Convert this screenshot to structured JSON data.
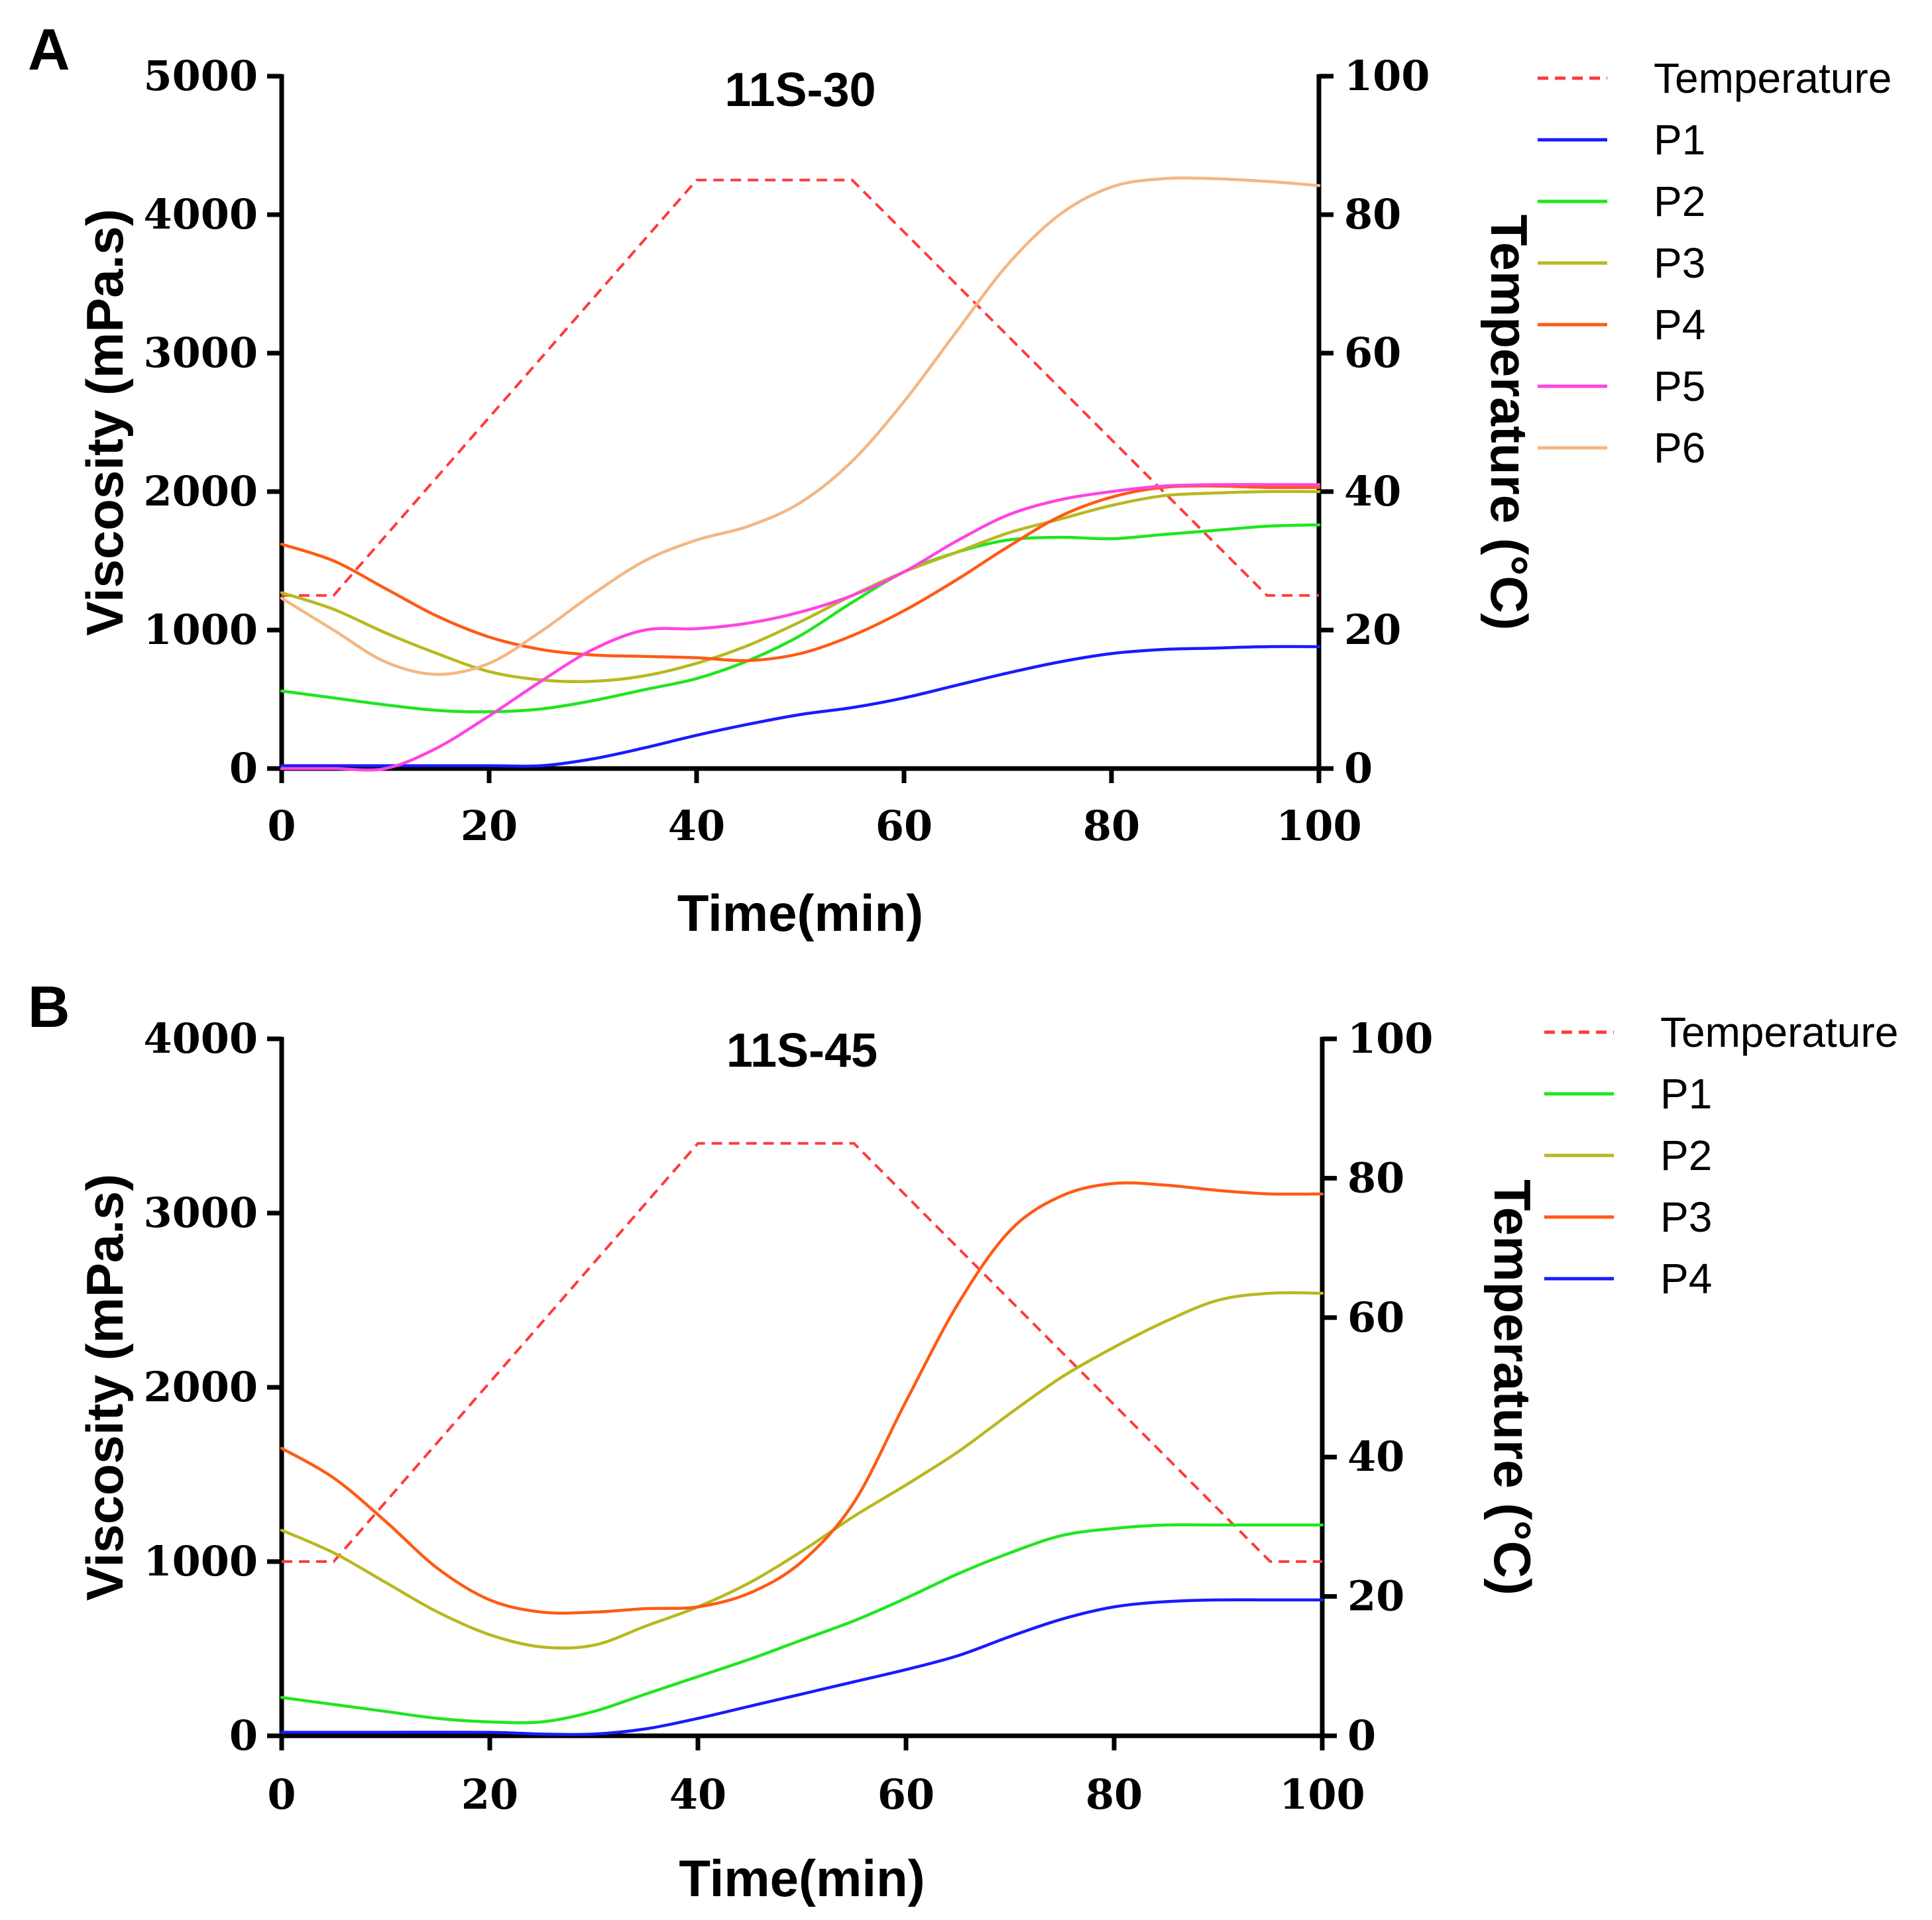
{
  "chart_data": [
    {
      "type": "line",
      "panel": "A",
      "title": "11S-30",
      "xlabel": "Time(min)",
      "ylabel": "Viscosity (mPa.s)",
      "y2label": "Temperature (°C)",
      "xlim": [
        0,
        100
      ],
      "ylim": [
        0,
        5000
      ],
      "y2lim": [
        0,
        100
      ],
      "xticks": [
        "0",
        "20",
        "40",
        "60",
        "80",
        "100"
      ],
      "yticks": [
        "0",
        "1000",
        "2000",
        "3000",
        "4000",
        "5000"
      ],
      "y2ticks": [
        "0",
        "20",
        "40",
        "60",
        "80",
        "100"
      ],
      "legend_position": "right",
      "temperature": {
        "name": "Temperature",
        "color": "#ff3b3b",
        "x": [
          0,
          5,
          40,
          55,
          95,
          100
        ],
        "values": [
          25,
          25,
          85,
          85,
          25,
          25
        ]
      },
      "series": [
        {
          "name": "P1",
          "color": "#1a1aff",
          "x": [
            0,
            10,
            20,
            25,
            30,
            35,
            40,
            45,
            50,
            55,
            60,
            65,
            70,
            75,
            80,
            85,
            90,
            95,
            100
          ],
          "values": [
            20,
            20,
            20,
            20,
            70,
            150,
            240,
            320,
            390,
            440,
            510,
            600,
            690,
            770,
            830,
            860,
            870,
            880,
            880
          ]
        },
        {
          "name": "P2",
          "color": "#1fe61f",
          "x": [
            0,
            5,
            10,
            15,
            20,
            25,
            30,
            35,
            40,
            45,
            50,
            55,
            60,
            65,
            70,
            75,
            80,
            85,
            90,
            95,
            100
          ],
          "values": [
            560,
            510,
            460,
            420,
            410,
            430,
            490,
            570,
            650,
            780,
            960,
            1200,
            1420,
            1560,
            1650,
            1670,
            1660,
            1690,
            1720,
            1750,
            1760
          ]
        },
        {
          "name": "P3",
          "color": "#b8b820",
          "x": [
            0,
            5,
            10,
            15,
            20,
            25,
            30,
            35,
            40,
            45,
            50,
            55,
            60,
            65,
            70,
            75,
            80,
            85,
            90,
            95,
            100
          ],
          "values": [
            1270,
            1150,
            980,
            830,
            700,
            640,
            630,
            670,
            760,
            890,
            1060,
            1250,
            1420,
            1560,
            1700,
            1800,
            1900,
            1970,
            1990,
            2000,
            2000
          ]
        },
        {
          "name": "P4",
          "color": "#ff5a14",
          "x": [
            0,
            5,
            10,
            15,
            20,
            25,
            30,
            35,
            40,
            45,
            50,
            55,
            60,
            65,
            70,
            75,
            80,
            85,
            90,
            95,
            100
          ],
          "values": [
            1620,
            1500,
            1300,
            1100,
            950,
            860,
            820,
            810,
            800,
            780,
            830,
            960,
            1140,
            1360,
            1600,
            1820,
            1960,
            2030,
            2040,
            2030,
            2030
          ]
        },
        {
          "name": "P5",
          "color": "#ff44e0",
          "x": [
            0,
            5,
            10,
            15,
            20,
            25,
            30,
            35,
            40,
            45,
            50,
            55,
            60,
            65,
            70,
            75,
            80,
            85,
            90,
            95,
            100
          ],
          "values": [
            0,
            0,
            0,
            150,
            380,
            630,
            860,
            1000,
            1010,
            1050,
            1130,
            1250,
            1420,
            1640,
            1830,
            1940,
            2000,
            2040,
            2050,
            2050,
            2050
          ]
        },
        {
          "name": "P6",
          "color": "#f3b784",
          "x": [
            0,
            5,
            10,
            15,
            20,
            25,
            30,
            35,
            40,
            45,
            50,
            55,
            60,
            65,
            70,
            75,
            80,
            85,
            90,
            95,
            100
          ],
          "values": [
            1230,
            1000,
            770,
            680,
            760,
            990,
            1260,
            1500,
            1650,
            1750,
            1920,
            2220,
            2650,
            3150,
            3640,
            4000,
            4200,
            4260,
            4260,
            4240,
            4210
          ]
        }
      ]
    },
    {
      "type": "line",
      "panel": "B",
      "title": "11S-45",
      "xlabel": "Time(min)",
      "ylabel": "Viscosity (mPa.s)",
      "y2label": "Temperature (°C)",
      "xlim": [
        0,
        100
      ],
      "ylim": [
        0,
        4000
      ],
      "y2lim": [
        0,
        100
      ],
      "xticks": [
        "0",
        "20",
        "40",
        "60",
        "80",
        "100"
      ],
      "yticks": [
        "0",
        "1000",
        "2000",
        "3000",
        "4000"
      ],
      "y2ticks": [
        "0",
        "20",
        "40",
        "60",
        "80",
        "100"
      ],
      "legend_position": "right",
      "temperature": {
        "name": "Temperature",
        "color": "#ff3b3b",
        "x": [
          0,
          5,
          40,
          55,
          95,
          100
        ],
        "values": [
          25,
          25,
          85,
          85,
          25,
          25
        ]
      },
      "series": [
        {
          "name": "P1",
          "color": "#1fe61f",
          "x": [
            0,
            5,
            10,
            15,
            20,
            25,
            30,
            35,
            40,
            45,
            50,
            55,
            60,
            65,
            70,
            75,
            80,
            85,
            90,
            95,
            100
          ],
          "values": [
            220,
            180,
            140,
            100,
            80,
            80,
            140,
            240,
            340,
            440,
            550,
            660,
            790,
            930,
            1050,
            1150,
            1190,
            1210,
            1210,
            1210,
            1210
          ]
        },
        {
          "name": "P2",
          "color": "#b8b820",
          "x": [
            0,
            5,
            10,
            15,
            20,
            25,
            30,
            35,
            40,
            45,
            50,
            55,
            60,
            65,
            70,
            75,
            80,
            85,
            90,
            95,
            100
          ],
          "values": [
            1180,
            1050,
            880,
            710,
            580,
            510,
            520,
            630,
            740,
            880,
            1060,
            1260,
            1440,
            1630,
            1850,
            2060,
            2230,
            2380,
            2500,
            2540,
            2540
          ]
        },
        {
          "name": "P3",
          "color": "#ff5a14",
          "x": [
            0,
            5,
            10,
            15,
            20,
            25,
            30,
            35,
            40,
            45,
            50,
            55,
            60,
            65,
            70,
            75,
            80,
            85,
            90,
            95,
            100
          ],
          "values": [
            1650,
            1480,
            1230,
            960,
            780,
            710,
            710,
            730,
            740,
            820,
            1000,
            1340,
            1920,
            2480,
            2900,
            3100,
            3170,
            3160,
            3130,
            3110,
            3110
          ]
        },
        {
          "name": "P4",
          "color": "#1a1aff",
          "x": [
            0,
            10,
            20,
            25,
            30,
            35,
            40,
            45,
            50,
            55,
            60,
            65,
            70,
            75,
            80,
            85,
            90,
            95,
            100
          ],
          "values": [
            20,
            20,
            20,
            10,
            10,
            40,
            100,
            170,
            240,
            310,
            380,
            460,
            570,
            670,
            740,
            770,
            780,
            780,
            780
          ]
        }
      ]
    }
  ]
}
